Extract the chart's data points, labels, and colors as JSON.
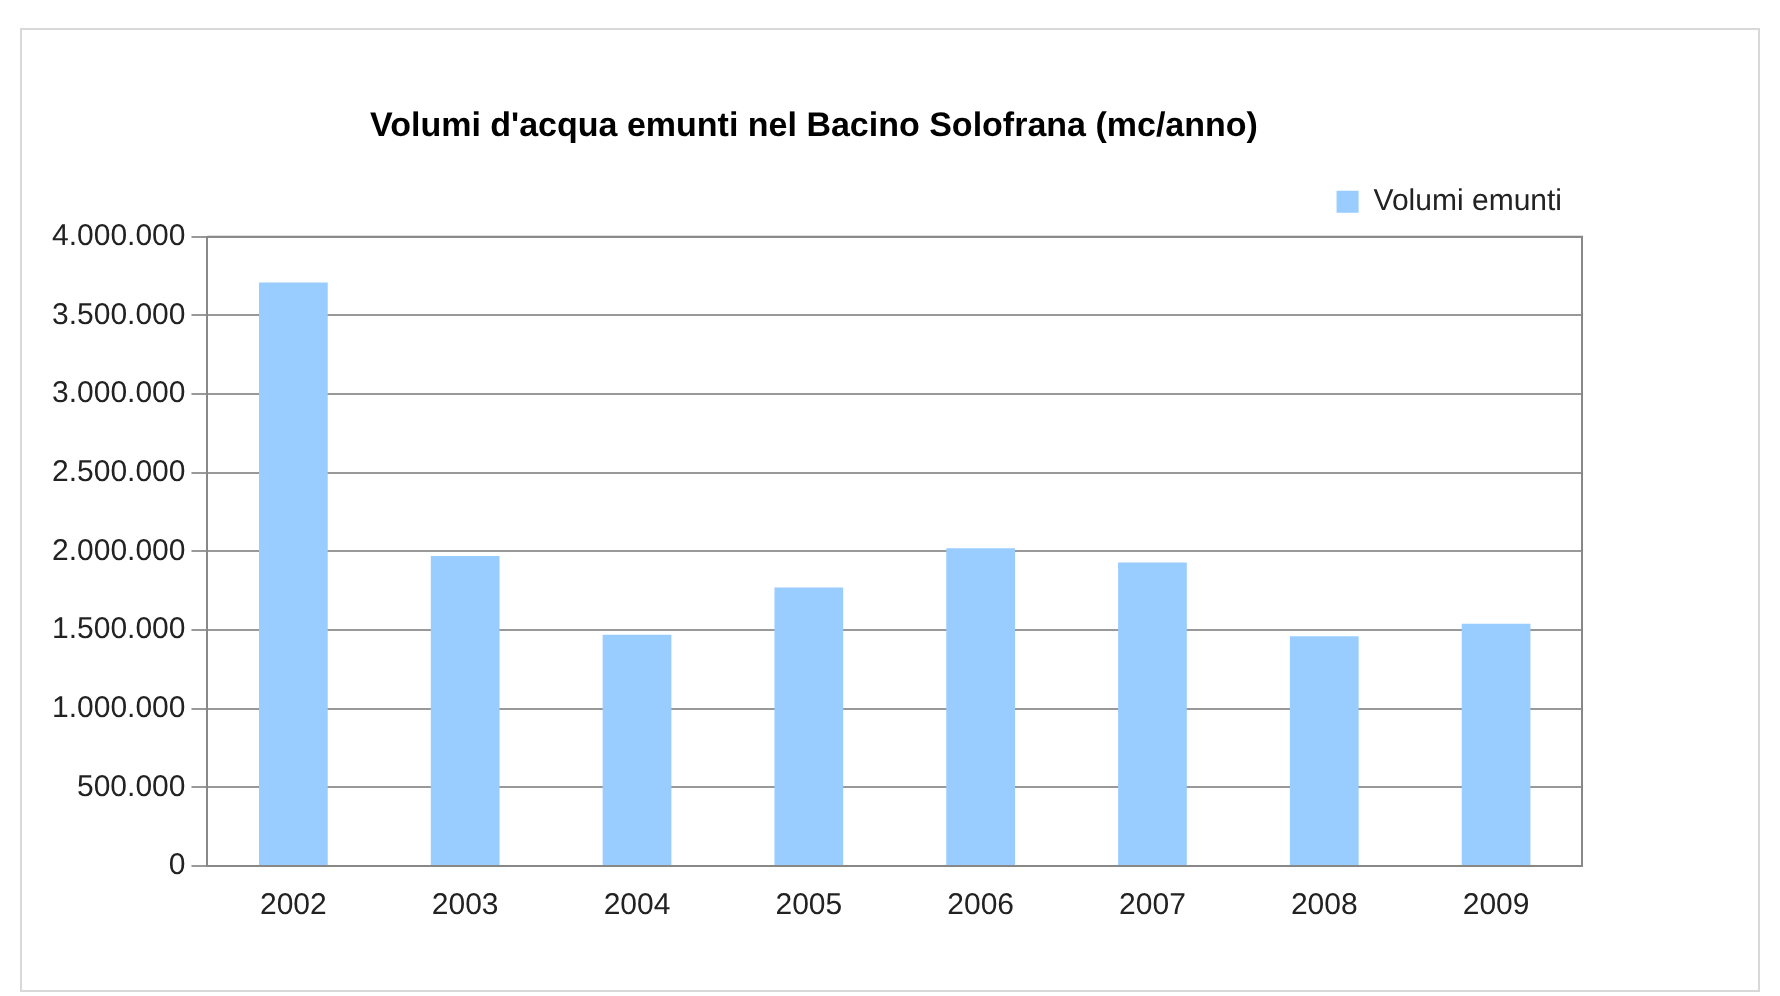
{
  "chart_data": {
    "type": "bar",
    "title": "Volumi d'acqua emunti nel Bacino Solofrana (mc/anno)",
    "categories": [
      "2002",
      "2003",
      "2004",
      "2005",
      "2006",
      "2007",
      "2008",
      "2009"
    ],
    "series": [
      {
        "name": "Volumi emunti",
        "color": "#99ccff",
        "values": [
          3710000,
          1970000,
          1470000,
          1770000,
          2020000,
          1930000,
          1460000,
          1540000
        ]
      }
    ],
    "ylim": [
      0,
      4000000
    ],
    "yticks": [
      0,
      {
        "value": 500000,
        "label": "500.000"
      },
      {
        "value": 1000000,
        "label": "1.000.000"
      },
      {
        "value": 1500000,
        "label": "1.500.000"
      },
      {
        "value": 2000000,
        "label": "2.000.000"
      },
      {
        "value": 2500000,
        "label": "2.500.000"
      },
      {
        "value": 3000000,
        "label": "3.000.000"
      },
      {
        "value": 3500000,
        "label": "3.500.000"
      },
      {
        "value": 4000000,
        "label": "4.000.000"
      }
    ],
    "grid": "y",
    "legend": "top right"
  }
}
